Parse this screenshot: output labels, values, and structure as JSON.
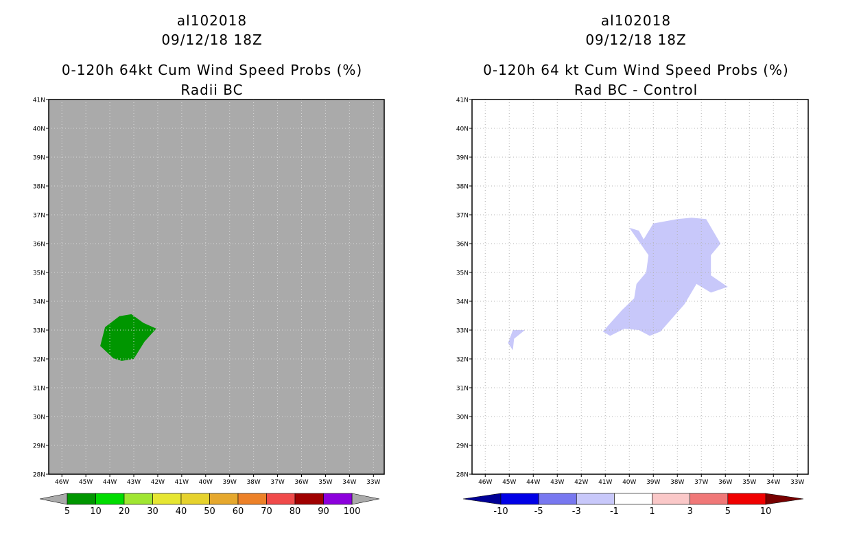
{
  "panels": [
    {
      "id": "left",
      "title_line1": "al102018",
      "title_line2": "09/12/18 18Z",
      "title_line3": "0-120h 64kt Cum Wind Speed Probs (%)",
      "title_line4": "Radii BC",
      "background_color": "#aaaaaa",
      "grid_color": "#d8d8d8",
      "lat_labels": [
        "41N",
        "40N",
        "39N",
        "38N",
        "37N",
        "36N",
        "35N",
        "34N",
        "33N",
        "32N",
        "31N",
        "30N",
        "29N",
        "28N"
      ],
      "lon_labels": [
        "46W",
        "45W",
        "44W",
        "43W",
        "42W",
        "41W",
        "40W",
        "39W",
        "38W",
        "37W",
        "36W",
        "35W",
        "34W",
        "33W"
      ],
      "colorbar": {
        "colors": [
          "#009600",
          "#00dc00",
          "#a0e632",
          "#e6e632",
          "#e6d22d",
          "#e6a82d",
          "#ed8128",
          "#f04a4a",
          "#a00000",
          "#8c00dc"
        ],
        "labels": [
          "5",
          "10",
          "20",
          "30",
          "40",
          "50",
          "60",
          "70",
          "80",
          "90",
          "100"
        ],
        "low_arrow_color": "#aaaaaa",
        "high_arrow_color": "#aaaaaa"
      },
      "regions": [
        {
          "color": "#009600",
          "points": [
            [
              -44.2,
              33.1
            ],
            [
              -43.6,
              33.48
            ],
            [
              -43.1,
              33.55
            ],
            [
              -42.6,
              33.25
            ],
            [
              -42.06,
              33.05
            ],
            [
              -42.55,
              32.6
            ],
            [
              -43.0,
              32.0
            ],
            [
              -43.5,
              31.93
            ],
            [
              -43.85,
              32.02
            ],
            [
              -44.4,
              32.45
            ],
            [
              -44.2,
              33.1
            ]
          ]
        }
      ]
    },
    {
      "id": "right",
      "title_line1": "al102018",
      "title_line2": "09/12/18 18Z",
      "title_line3": "0-120h 64 kt Cum Wind Speed Probs (%)",
      "title_line4": "Rad BC - Control",
      "background_color": "#ffffff",
      "grid_color": "#b4b4b4",
      "lat_labels": [
        "41N",
        "40N",
        "39N",
        "38N",
        "37N",
        "36N",
        "35N",
        "34N",
        "33N",
        "32N",
        "31N",
        "30N",
        "29N",
        "28N"
      ],
      "lon_labels": [
        "46W",
        "45W",
        "44W",
        "43W",
        "42W",
        "41W",
        "40W",
        "39W",
        "38W",
        "37W",
        "36W",
        "35W",
        "34W",
        "33W"
      ],
      "colorbar": {
        "colors": [
          "#0000e6",
          "#7878f0",
          "#c8c8fa",
          "#ffffff",
          "#fac8c8",
          "#f07878",
          "#f00000"
        ],
        "labels": [
          "-10",
          "-5",
          "-3",
          "-1",
          "1",
          "3",
          "5",
          "10"
        ],
        "low_arrow_color": "#000096",
        "high_arrow_color": "#780000"
      },
      "regions": [
        {
          "color": "#c8c8fa",
          "points": [
            [
              -40.0,
              36.55
            ],
            [
              -39.6,
              36.45
            ],
            [
              -39.4,
              36.15
            ],
            [
              -39.0,
              36.7
            ],
            [
              -38.0,
              36.85
            ],
            [
              -37.4,
              36.9
            ],
            [
              -36.8,
              36.85
            ],
            [
              -36.2,
              36.0
            ],
            [
              -36.6,
              35.6
            ],
            [
              -36.6,
              34.9
            ],
            [
              -35.9,
              34.5
            ],
            [
              -36.6,
              34.3
            ],
            [
              -37.2,
              34.6
            ],
            [
              -37.7,
              33.9
            ],
            [
              -38.7,
              32.95
            ],
            [
              -39.15,
              32.8
            ],
            [
              -39.6,
              33.0
            ],
            [
              -40.2,
              33.05
            ],
            [
              -40.8,
              32.8
            ],
            [
              -41.1,
              32.95
            ],
            [
              -40.3,
              33.7
            ],
            [
              -39.8,
              34.1
            ],
            [
              -39.7,
              34.6
            ],
            [
              -39.3,
              35.0
            ],
            [
              -39.2,
              35.6
            ],
            [
              -40.0,
              36.55
            ]
          ]
        },
        {
          "color": "#c8c8fa",
          "points": [
            [
              -44.8,
              32.7
            ],
            [
              -44.35,
              33.0
            ],
            [
              -44.85,
              33.0
            ],
            [
              -45.05,
              32.55
            ],
            [
              -44.85,
              32.3
            ],
            [
              -44.8,
              32.7
            ]
          ]
        }
      ]
    }
  ]
}
